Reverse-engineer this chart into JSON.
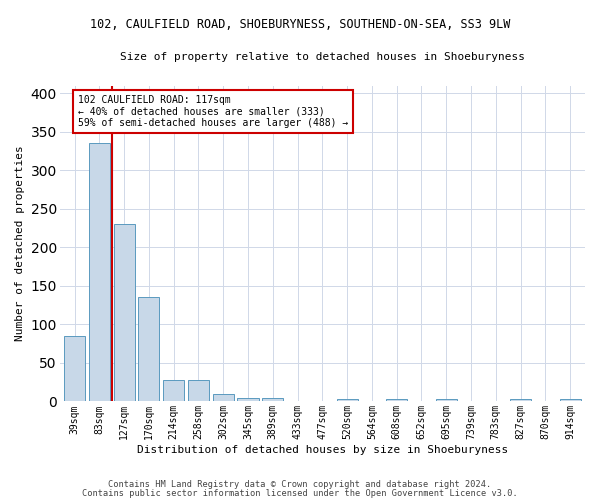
{
  "title1": "102, CAULFIELD ROAD, SHOEBURYNESS, SOUTHEND-ON-SEA, SS3 9LW",
  "title2": "Size of property relative to detached houses in Shoeburyness",
  "xlabel": "Distribution of detached houses by size in Shoeburyness",
  "ylabel": "Number of detached properties",
  "bins": [
    "39sqm",
    "83sqm",
    "127sqm",
    "170sqm",
    "214sqm",
    "258sqm",
    "302sqm",
    "345sqm",
    "389sqm",
    "433sqm",
    "477sqm",
    "520sqm",
    "564sqm",
    "608sqm",
    "652sqm",
    "695sqm",
    "739sqm",
    "783sqm",
    "827sqm",
    "870sqm",
    "914sqm"
  ],
  "bar_heights": [
    85,
    335,
    230,
    135,
    28,
    28,
    10,
    5,
    5,
    0,
    0,
    3,
    0,
    3,
    0,
    3,
    0,
    0,
    3,
    0,
    3
  ],
  "bar_color": "#c8d8e8",
  "bar_edge_color": "#5a9abf",
  "vline_x": 1.5,
  "vline_color": "#cc0000",
  "annotation_text": "102 CAULFIELD ROAD: 117sqm\n← 40% of detached houses are smaller (333)\n59% of semi-detached houses are larger (488) →",
  "annotation_box_color": "#ffffff",
  "annotation_box_edge": "#cc0000",
  "ylim": [
    0,
    410
  ],
  "yticks": [
    0,
    50,
    100,
    150,
    200,
    250,
    300,
    350,
    400
  ],
  "footer1": "Contains HM Land Registry data © Crown copyright and database right 2024.",
  "footer2": "Contains public sector information licensed under the Open Government Licence v3.0.",
  "bg_color": "#ffffff",
  "grid_color": "#d0d8e8"
}
